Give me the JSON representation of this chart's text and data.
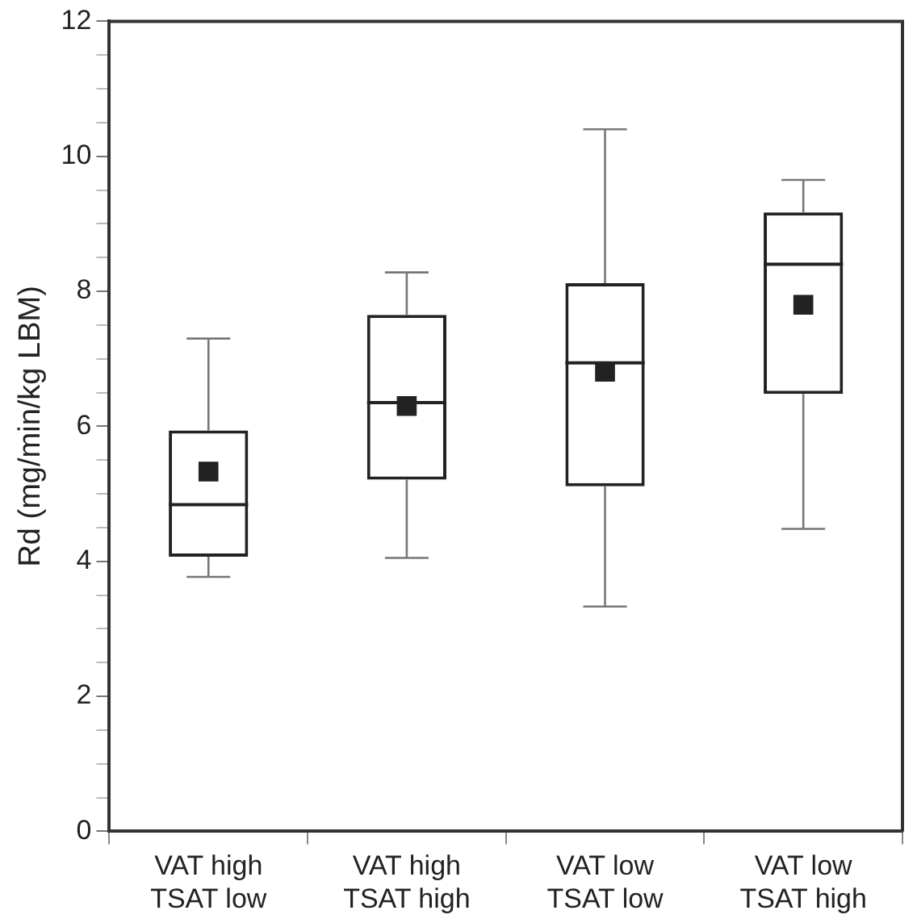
{
  "chart_data": {
    "type": "box",
    "ylabel": "Rd (mg/min/kg LBM)",
    "categories": [
      "VAT high\nTSAT low",
      "VAT high\nTSAT high",
      "VAT low\nTSAT low",
      "VAT low\nTSAT high"
    ],
    "boxes": [
      {
        "low": 3.77,
        "q1": 4.07,
        "median": 4.84,
        "q3": 5.94,
        "high": 7.3,
        "mean": 5.33
      },
      {
        "low": 4.05,
        "q1": 5.21,
        "median": 6.35,
        "q3": 7.65,
        "high": 8.28,
        "mean": 6.3
      },
      {
        "low": 3.33,
        "q1": 5.11,
        "median": 6.94,
        "q3": 8.12,
        "high": 10.4,
        "mean": 6.81
      },
      {
        "low": 4.48,
        "q1": 6.48,
        "median": 8.4,
        "q3": 9.17,
        "high": 9.65,
        "mean": 7.8
      }
    ],
    "ylim": [
      0,
      12
    ],
    "yticks": [
      0,
      {
        "value": 0.5,
        "label": null
      },
      {
        "value": 1,
        "label": null
      },
      {
        "value": 1.5,
        "label": null
      },
      2,
      {
        "value": 2.5,
        "label": null
      },
      {
        "value": 3,
        "label": null
      },
      {
        "value": 3.5,
        "label": null
      },
      4,
      {
        "value": 4.5,
        "label": null
      },
      {
        "value": 5,
        "label": null
      },
      {
        "value": 5.5,
        "label": null
      },
      6,
      {
        "value": 6.5,
        "label": null
      },
      {
        "value": 7,
        "label": null
      },
      {
        "value": 7.5,
        "label": null
      },
      8,
      {
        "value": 8.5,
        "label": null
      },
      {
        "value": 9,
        "label": null
      },
      {
        "value": 9.5,
        "label": null
      },
      10,
      {
        "value": 10.5,
        "label": null
      },
      {
        "value": 11,
        "label": null
      },
      {
        "value": 11.5,
        "label": null
      },
      12
    ],
    "color": "#222222",
    "grid": false,
    "legend": false
  }
}
